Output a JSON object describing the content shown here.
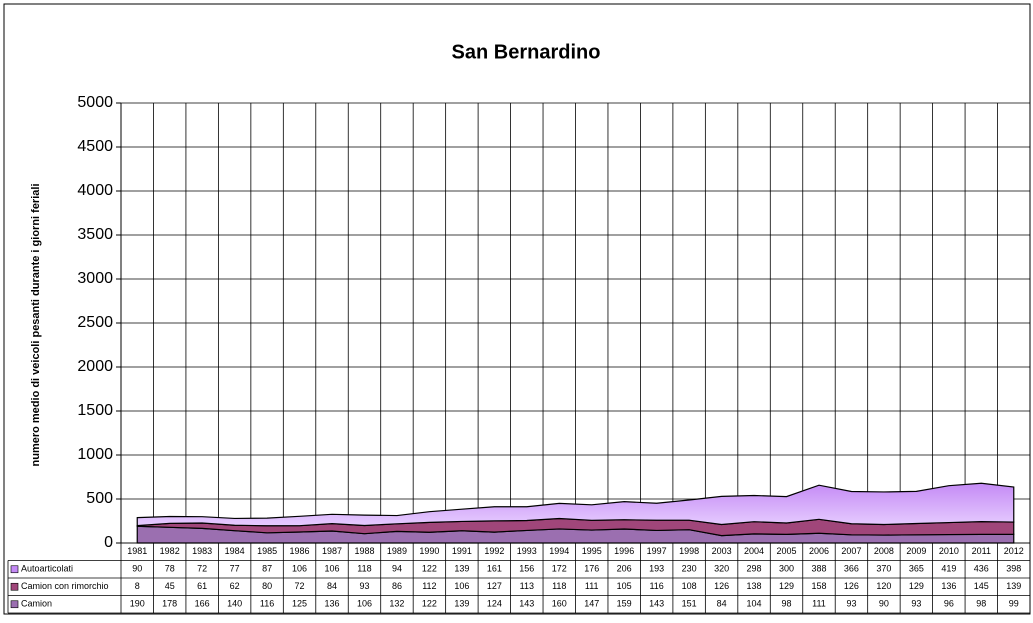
{
  "chart_data": {
    "type": "area",
    "stacked": true,
    "grid": true,
    "title": "San Bernardino",
    "y_label": "numero medio di veicoli pesanti durante i giorni feriali",
    "categories": [
      "1981",
      "1982",
      "1983",
      "1984",
      "1985",
      "1986",
      "1987",
      "1988",
      "1989",
      "1990",
      "1991",
      "1992",
      "1993",
      "1994",
      "1995",
      "1996",
      "1997",
      "1998",
      "2003",
      "2004",
      "2005",
      "2006",
      "2007",
      "2008",
      "2009",
      "2010",
      "2011",
      "2012"
    ],
    "series": [
      {
        "name": "Autoarticolati",
        "color": "#cc99ff",
        "values": [
          90,
          78,
          72,
          77,
          87,
          106,
          106,
          118,
          94,
          122,
          139,
          161,
          156,
          172,
          176,
          206,
          193,
          230,
          320,
          298,
          300,
          388,
          366,
          370,
          365,
          419,
          436,
          398
        ]
      },
      {
        "name": "Camion con rimorchio",
        "color": "#a0467a",
        "values": [
          8,
          45,
          61,
          62,
          80,
          72,
          84,
          93,
          86,
          112,
          106,
          127,
          113,
          118,
          111,
          105,
          116,
          108,
          126,
          138,
          129,
          158,
          126,
          120,
          129,
          136,
          145,
          139
        ]
      },
      {
        "name": "Camion",
        "color": "#9b6fb0",
        "values": [
          190,
          178,
          166,
          140,
          116,
          125,
          136,
          106,
          132,
          122,
          139,
          124,
          143,
          160,
          147,
          159,
          143,
          151,
          84,
          104,
          98,
          111,
          93,
          90,
          93,
          96,
          98,
          99
        ]
      }
    ],
    "ylim": [
      0,
      5000
    ],
    "yticks": [
      0,
      500,
      1000,
      1500,
      2000,
      2500,
      3000,
      3500,
      4000,
      4500,
      5000
    ]
  }
}
